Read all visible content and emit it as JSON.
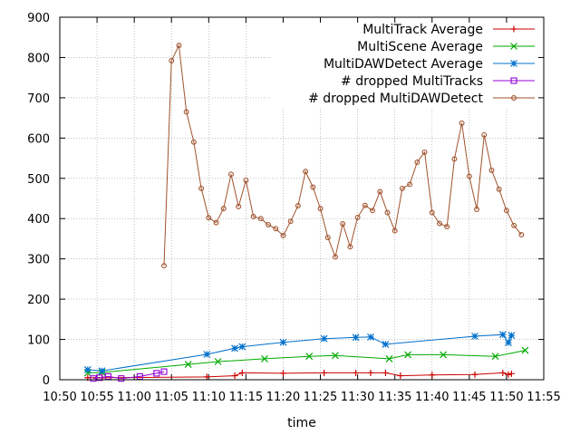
{
  "chart_data": {
    "type": "line",
    "title": "",
    "xlabel": "time",
    "ylabel": "",
    "xlim": [
      "10:50",
      "11:55"
    ],
    "ylim": [
      0,
      900
    ],
    "grid": true,
    "legend_position": "top-right",
    "x_ticks": [
      "10:50",
      "10:55",
      "11:00",
      "11:05",
      "11:10",
      "11:15",
      "11:20",
      "11:25",
      "11:30",
      "11:35",
      "11:40",
      "11:45",
      "11:50",
      "11:55"
    ],
    "y_ticks": [
      0,
      100,
      200,
      300,
      400,
      500,
      600,
      700,
      800,
      900
    ],
    "series": [
      {
        "name": "MultiTrack Average",
        "color": "#cc0000",
        "marker": "plus",
        "x": [
          "10:53:45",
          "10:55:40",
          "11:09:45",
          "11:13:30",
          "11:14:30",
          "11:20:00",
          "11:25:30",
          "11:29:45",
          "11:31:45",
          "11:33:45",
          "11:35:45",
          "11:40:00",
          "11:45:45",
          "11:49:30",
          "11:50:15",
          "11:50:40"
        ],
        "y": [
          5,
          5,
          7,
          10,
          17,
          16,
          17,
          17,
          17,
          17,
          10,
          12,
          13,
          17,
          13,
          15
        ]
      },
      {
        "name": "MultiScene Average",
        "color": "#00aa00",
        "marker": "x",
        "x": [
          "10:53:45",
          "10:55:40",
          "11:07:15",
          "11:11:15",
          "11:17:30",
          "11:23:30",
          "11:27:00",
          "11:34:15",
          "11:36:45",
          "11:41:30",
          "11:48:30",
          "11:52:30"
        ],
        "y": [
          17,
          18,
          38,
          45,
          52,
          58,
          60,
          52,
          62,
          62,
          58,
          73
        ]
      },
      {
        "name": "MultiDAWDetect Average",
        "color": "#0070cc",
        "marker": "star",
        "x": [
          "10:53:45",
          "10:55:40",
          "11:09:45",
          "11:13:30",
          "11:14:30",
          "11:20:00",
          "11:25:30",
          "11:29:45",
          "11:31:45",
          "11:33:45",
          "11:45:45",
          "11:49:30",
          "11:50:15",
          "11:50:40"
        ],
        "y": [
          25,
          22,
          63,
          78,
          82,
          93,
          102,
          105,
          106,
          88,
          108,
          112,
          92,
          110
        ]
      },
      {
        "name": "# dropped MultiTracks",
        "color": "#9400d3",
        "marker": "square",
        "x": [
          "10:54:30",
          "10:55:20",
          "10:56:30",
          "10:58:15",
          "11:00:45",
          "11:03:00",
          "11:04:00"
        ],
        "y": [
          3,
          5,
          8,
          3,
          8,
          16,
          20
        ]
      },
      {
        "name": "# dropped MultiDAWDetect",
        "color": "#a0522d",
        "marker": "circle",
        "x": [
          "11:04:00",
          "11:05:00",
          "11:06:00",
          "11:07:00",
          "11:08:00",
          "11:09:00",
          "11:10:00",
          "11:11:00",
          "11:12:00",
          "11:13:00",
          "11:14:00",
          "11:15:00",
          "11:16:00",
          "11:17:00",
          "11:18:00",
          "11:19:00",
          "11:20:00",
          "11:21:00",
          "11:22:00",
          "11:23:00",
          "11:24:00",
          "11:25:00",
          "11:26:00",
          "11:27:00",
          "11:28:00",
          "11:29:00",
          "11:30:00",
          "11:31:00",
          "11:32:00",
          "11:33:00",
          "11:34:00",
          "11:35:00",
          "11:36:00",
          "11:37:00",
          "11:38:00",
          "11:39:00",
          "11:40:00",
          "11:41:00",
          "11:42:00",
          "11:43:00",
          "11:44:00",
          "11:45:00",
          "11:46:00",
          "11:47:00",
          "11:48:00",
          "11:49:00",
          "11:50:00",
          "11:51:00",
          "11:52:00"
        ],
        "y": [
          283,
          792,
          830,
          665,
          590,
          475,
          402,
          390,
          425,
          510,
          430,
          495,
          405,
          400,
          385,
          375,
          358,
          393,
          432,
          517,
          478,
          425,
          353,
          305,
          387,
          330,
          403,
          433,
          420,
          467,
          415,
          370,
          475,
          485,
          540,
          565,
          415,
          388,
          380,
          548,
          637,
          505,
          423,
          608,
          520,
          473,
          420,
          383,
          360
        ]
      }
    ]
  }
}
